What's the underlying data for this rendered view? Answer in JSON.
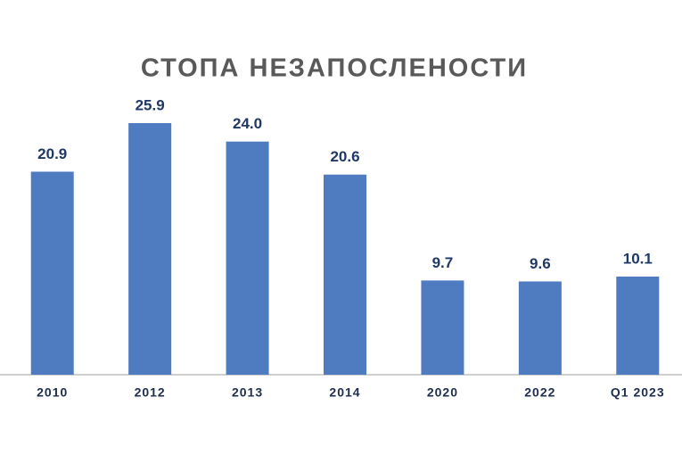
{
  "chart_data": {
    "type": "bar",
    "title": "СТОПА НЕЗАПОСЛЕНОСТИ",
    "categories": [
      "2010",
      "2012",
      "2013",
      "2014",
      "2020",
      "2022",
      "Q1 2023"
    ],
    "values": [
      20.9,
      25.9,
      24,
      20.6,
      9.7,
      9.6,
      10.1
    ],
    "value_labels": [
      "20.9",
      "25.9",
      "24.0",
      "20.6",
      "9.7",
      "9.6",
      "10.1"
    ],
    "color": "#4f7cc0"
  }
}
